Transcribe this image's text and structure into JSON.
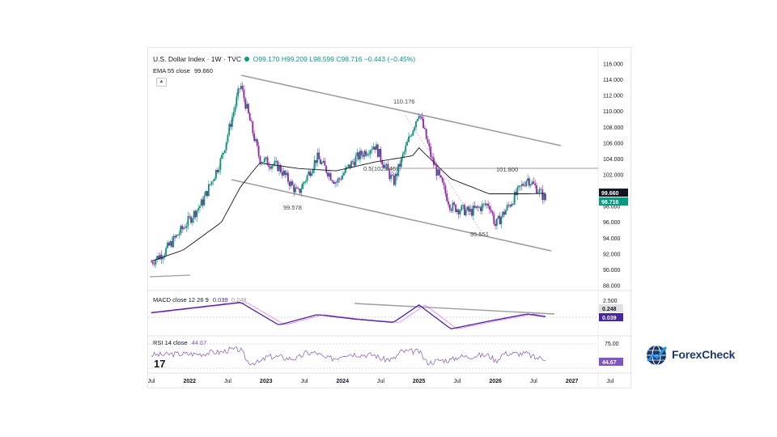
{
  "header": {
    "symbol": "U.S. Dollar Index · 1W · TVC",
    "open": "O99.170",
    "high": "H99.209",
    "low": "L98.599",
    "close": "C98.716",
    "change": "−0.443 (−0.45%)"
  },
  "ema": {
    "label": "EMA 55 close",
    "value": "99.660"
  },
  "macd": {
    "label": "MACD close 12 26 9",
    "value": "0.039",
    "value2": "0.248"
  },
  "rsi": {
    "label": "RSI 14 close",
    "value": "44.67"
  },
  "price_axis": [
    "116.000",
    "114.000",
    "112.000",
    "110.000",
    "108.000",
    "106.000",
    "104.000",
    "102.000",
    "100.000",
    "98.000",
    "96.000",
    "94.000",
    "92.000",
    "90.000",
    "88.000"
  ],
  "macd_axis": [
    "2.500"
  ],
  "rsi_axis": [
    "75.00"
  ],
  "time_axis": [
    "Jul",
    "2022",
    "Jul",
    "2023",
    "Jul",
    "2024",
    "Jul",
    "2025",
    "Jul",
    "2026",
    "Jul",
    "2027",
    "Jul"
  ],
  "annotations": {
    "peak_2025": "110.176",
    "fib": "0.5(102.846)",
    "high_recent": "101.800",
    "low_2023": "99.578",
    "low_2026": "95.551",
    "ema_tag": "99.660",
    "close_tag": "98.716",
    "macd_tag_a": "0.248",
    "macd_tag_b": "0.039",
    "rsi_tag": "44.67"
  },
  "colors": {
    "up": "#089981",
    "down": "#9c27b0",
    "ema": "#131722",
    "macd": "#2962ff",
    "signal": "#d500f9",
    "rsi": "#7e57c2",
    "channel": "#9e9e9e",
    "close_tag": "#089981"
  },
  "brand": {
    "name": "ForexCheck",
    "tv": "17"
  },
  "chart_data": {
    "type": "line",
    "title": "U.S. Dollar Index · 1W · TVC",
    "ylim": [
      88,
      116
    ],
    "x_range": [
      "2021-07",
      "2027-09"
    ],
    "series": [
      {
        "name": "U.S. Dollar Index",
        "x": [
          "2021-06",
          "2021-09",
          "2021-12",
          "2022-03",
          "2022-06",
          "2022-09",
          "2022-12",
          "2023-03",
          "2023-06",
          "2023-09",
          "2023-12",
          "2024-03",
          "2024-06",
          "2024-09",
          "2024-12",
          "2025-01",
          "2025-03",
          "2025-06",
          "2025-09",
          "2025-12",
          "2026-01",
          "2026-03",
          "2026-06",
          "2026-08",
          "2026-09"
        ],
        "values": [
          90.4,
          92.2,
          95.3,
          98.5,
          104.0,
          113.4,
          104.0,
          103.0,
          99.6,
          104.2,
          101.0,
          104.0,
          105.8,
          101.0,
          107.8,
          110.0,
          104.0,
          98.0,
          97.3,
          98.4,
          95.6,
          98.0,
          101.6,
          99.8,
          98.7
        ]
      },
      {
        "name": "EMA 55 close",
        "x": [
          "2021-06",
          "2021-12",
          "2022-06",
          "2022-09",
          "2022-12",
          "2023-06",
          "2023-12",
          "2024-06",
          "2024-12",
          "2025-01",
          "2025-06",
          "2025-12",
          "2026-06",
          "2026-09"
        ],
        "values": [
          90.8,
          92.5,
          96.0,
          100.5,
          103.5,
          102.8,
          102.5,
          103.6,
          104.4,
          105.4,
          101.5,
          99.6,
          99.6,
          99.66
        ]
      },
      {
        "name": "MACD close 12 26 9",
        "x": [
          "2021-06",
          "2022-09",
          "2023-03",
          "2023-09",
          "2024-03",
          "2024-09",
          "2025-01",
          "2025-06",
          "2025-12",
          "2026-06",
          "2026-09"
        ],
        "values": [
          0.6,
          2.3,
          -1.2,
          0.4,
          -0.3,
          -0.8,
          1.9,
          -1.8,
          -0.6,
          0.5,
          0.039
        ]
      }
    ]
  }
}
